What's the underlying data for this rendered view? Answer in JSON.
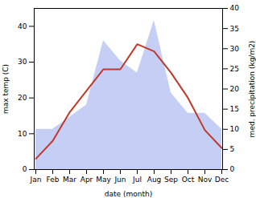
{
  "chart_data": {
    "type": "line",
    "categories": [
      "Jan",
      "Feb",
      "Mar",
      "Apr",
      "May",
      "Jun",
      "Jul",
      "Aug",
      "Sep",
      "Oct",
      "Nov",
      "Dec"
    ],
    "series": [
      {
        "type": "area",
        "color": "#c5cff5",
        "axis": "y2",
        "values": [
          10,
          10,
          13,
          16,
          32,
          27,
          24,
          37,
          19,
          14,
          14,
          10
        ]
      },
      {
        "type": "line",
        "color": "#c0392b",
        "values": [
          3,
          8,
          16,
          22,
          28,
          28,
          35,
          33,
          27,
          20,
          11,
          6
        ]
      }
    ],
    "xlabel": "date (month)",
    "ylabel": "max temp (C)",
    "y2label": "med. precipitation (kg/m2)",
    "ylim": [
      0,
      45
    ],
    "yticks": [
      0,
      10,
      20,
      30,
      40
    ],
    "y2lim": [
      0,
      40
    ],
    "y2ticks": [
      0,
      5,
      10,
      15,
      20,
      25,
      30,
      35,
      40
    ]
  }
}
